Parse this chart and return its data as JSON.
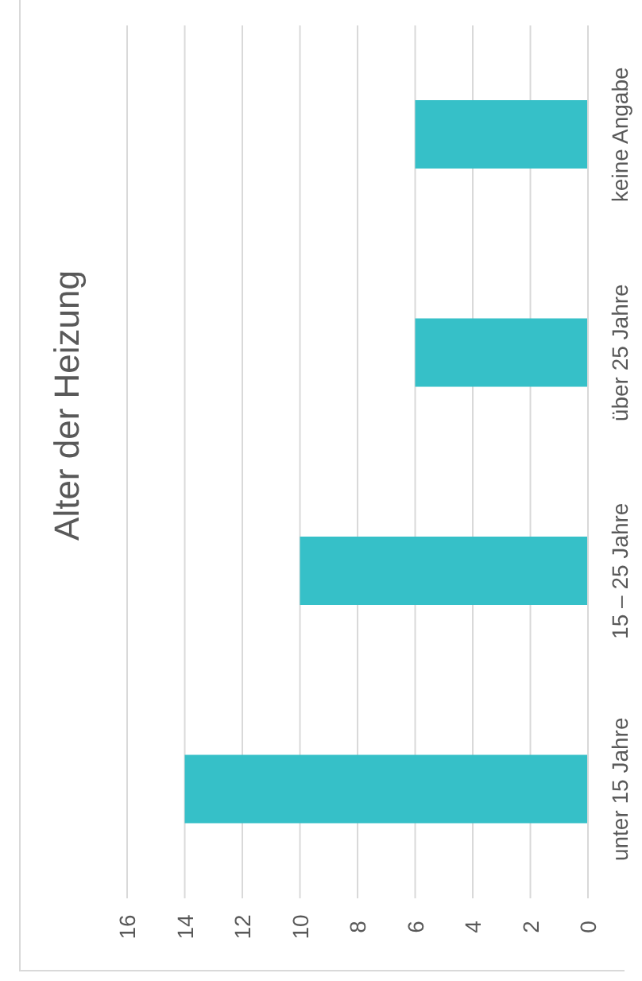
{
  "chart_data": {
    "type": "bar",
    "orientation": "horizontal",
    "title": "Alter der Heizung",
    "categories": [
      "keine Angabe",
      "über 25 Jahre",
      "15 – 25 Jahre",
      "unter 15 Jahre"
    ],
    "values": [
      6,
      6,
      10,
      14
    ],
    "color": "#36c0c8",
    "xlim": [
      16,
      0
    ],
    "xticks": [
      16,
      14,
      12,
      10,
      8,
      6,
      4,
      2,
      0
    ],
    "grid": "x",
    "legend": false
  }
}
